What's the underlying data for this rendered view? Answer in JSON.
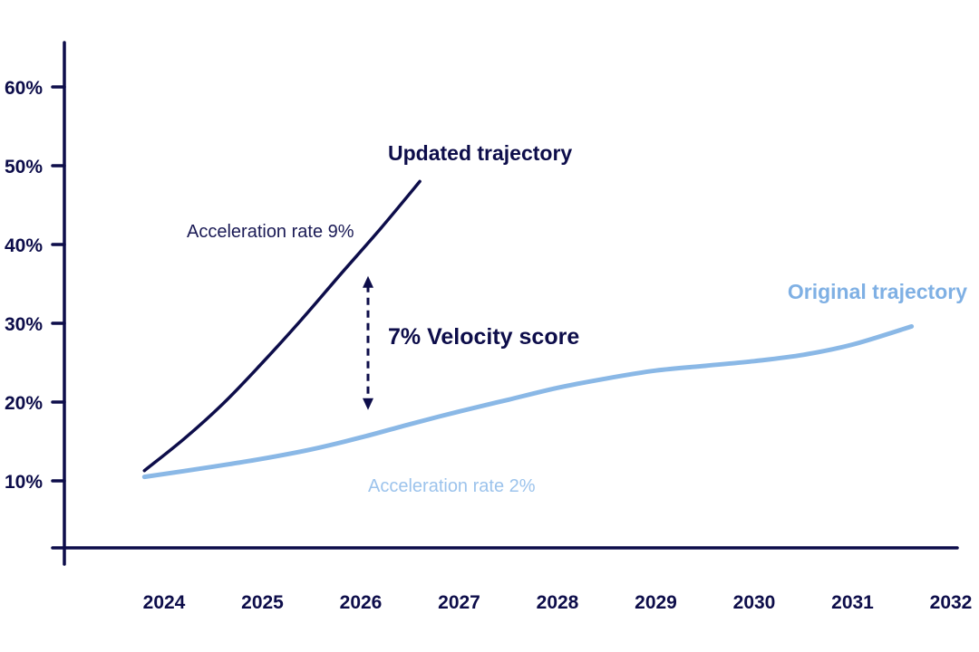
{
  "colors": {
    "axis": "#0d0d4a",
    "updated": "#0d0d4a",
    "original": "#8ab8e6",
    "original_label": "#7fb0e4",
    "original_rate_label": "#9cc3ec"
  },
  "chart_data": {
    "type": "line",
    "title": "",
    "xlabel": "",
    "ylabel": "",
    "xlim": [
      2023.2,
      2032.5
    ],
    "ylim": [
      0,
      66
    ],
    "grid": false,
    "x_ticks": [
      {
        "value": 2024,
        "label": "2024"
      },
      {
        "value": 2025,
        "label": "2025"
      },
      {
        "value": 2026,
        "label": "2026"
      },
      {
        "value": 2027,
        "label": "2027"
      },
      {
        "value": 2028,
        "label": "2028"
      },
      {
        "value": 2029,
        "label": "2029"
      },
      {
        "value": 2030,
        "label": "2030"
      },
      {
        "value": 2031,
        "label": "2031"
      },
      {
        "value": 2032,
        "label": "2032"
      }
    ],
    "y_ticks": [
      {
        "value": 10,
        "label": "10%"
      },
      {
        "value": 20,
        "label": "20%"
      },
      {
        "value": 30,
        "label": "30%"
      },
      {
        "value": 40,
        "label": "40%"
      },
      {
        "value": 50,
        "label": "50%"
      },
      {
        "value": 60,
        "label": "60%"
      }
    ],
    "series": [
      {
        "name": "Updated trajectory",
        "label": "Updated trajectory",
        "rate_label": "Acceleration rate 9%",
        "color": "#0d0d4a",
        "points": [
          {
            "x": 2023.8,
            "y": 11.3
          },
          {
            "x": 2024.2,
            "y": 15.3
          },
          {
            "x": 2024.6,
            "y": 19.8
          },
          {
            "x": 2025.0,
            "y": 25.0
          },
          {
            "x": 2025.4,
            "y": 30.5
          },
          {
            "x": 2025.8,
            "y": 36.3
          },
          {
            "x": 2026.2,
            "y": 42.0
          },
          {
            "x": 2026.6,
            "y": 48.0
          }
        ]
      },
      {
        "name": "Original trajectory",
        "label": "Original trajectory",
        "rate_label": "Acceleration rate 2%",
        "color": "#8ab8e6",
        "points": [
          {
            "x": 2023.8,
            "y": 10.5
          },
          {
            "x": 2024.5,
            "y": 11.8
          },
          {
            "x": 2025.0,
            "y": 12.8
          },
          {
            "x": 2025.5,
            "y": 14.0
          },
          {
            "x": 2026.0,
            "y": 15.5
          },
          {
            "x": 2026.5,
            "y": 17.2
          },
          {
            "x": 2027.0,
            "y": 18.8
          },
          {
            "x": 2027.5,
            "y": 20.3
          },
          {
            "x": 2028.0,
            "y": 21.8
          },
          {
            "x": 2028.5,
            "y": 23.0
          },
          {
            "x": 2029.0,
            "y": 24.0
          },
          {
            "x": 2029.5,
            "y": 24.6
          },
          {
            "x": 2030.0,
            "y": 25.2
          },
          {
            "x": 2030.5,
            "y": 26.0
          },
          {
            "x": 2031.0,
            "y": 27.3
          },
          {
            "x": 2031.6,
            "y": 29.6
          }
        ]
      }
    ],
    "annotations": {
      "velocity": {
        "label": "7% Velocity score",
        "x": 2026.0,
        "y_top": 36.0,
        "y_bottom": 19.0
      }
    }
  }
}
